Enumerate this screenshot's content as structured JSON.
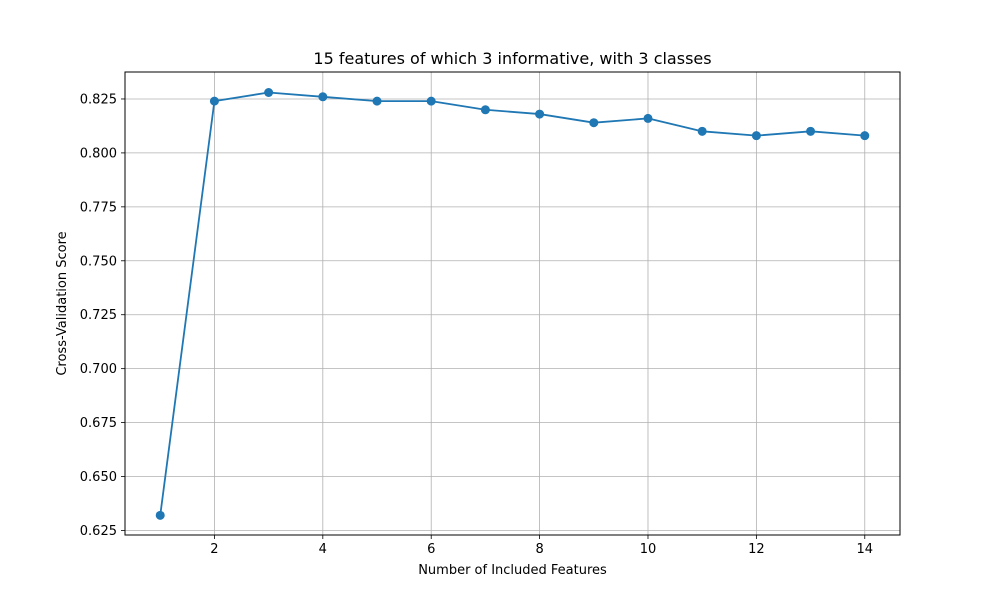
{
  "chart_data": {
    "type": "line",
    "title": "15 features of which 3 informative, with 3 classes",
    "xlabel": "Number of Included Features",
    "ylabel": "Cross-Validation Score",
    "x": [
      1,
      2,
      3,
      4,
      5,
      6,
      7,
      8,
      9,
      10,
      11,
      12,
      13,
      14
    ],
    "series": [
      {
        "values": [
          0.632,
          0.824,
          0.828,
          0.826,
          0.824,
          0.824,
          0.82,
          0.818,
          0.814,
          0.816,
          0.81,
          0.808,
          0.81,
          0.808
        ]
      }
    ],
    "xlim": [
      0.35,
      14.65
    ],
    "ylim": [
      0.6229,
      0.8375
    ],
    "xticks": [
      2,
      4,
      6,
      8,
      10,
      12,
      14
    ],
    "xtick_labels": [
      "2",
      "4",
      "6",
      "8",
      "10",
      "12",
      "14"
    ],
    "yticks": [
      0.625,
      0.65,
      0.675,
      0.7,
      0.725,
      0.75,
      0.775,
      0.8,
      0.825
    ],
    "ytick_labels": [
      "0.625",
      "0.650",
      "0.675",
      "0.700",
      "0.725",
      "0.750",
      "0.775",
      "0.800",
      "0.825"
    ],
    "grid": true,
    "legend": "none",
    "marker": "circle",
    "colors": {
      "line": "#1f77b4",
      "grid": "#b0b0b0",
      "axes": "#000000"
    }
  }
}
